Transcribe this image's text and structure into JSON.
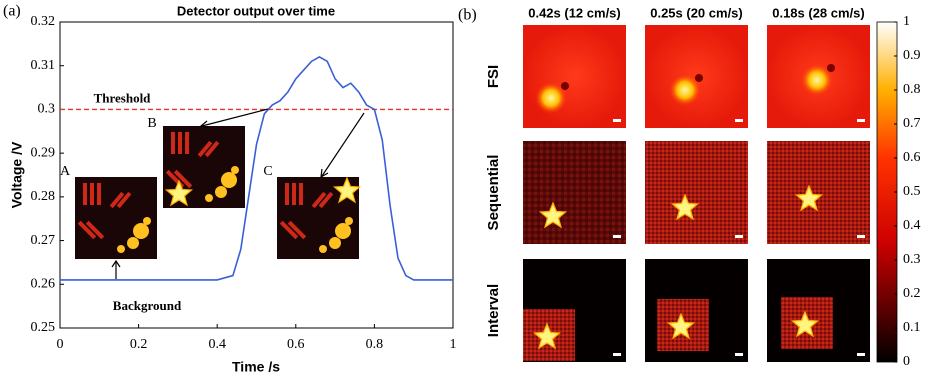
{
  "chart_data": {
    "type": "line",
    "panel_label": "(a)",
    "title": "Detector output over time",
    "xlabel": "Time /s",
    "ylabel": "Voltage /V",
    "x": [
      0,
      0.05,
      0.1,
      0.15,
      0.2,
      0.25,
      0.3,
      0.35,
      0.4,
      0.44,
      0.46,
      0.48,
      0.5,
      0.52,
      0.54,
      0.56,
      0.58,
      0.6,
      0.62,
      0.64,
      0.66,
      0.68,
      0.7,
      0.72,
      0.74,
      0.76,
      0.78,
      0.8,
      0.82,
      0.84,
      0.86,
      0.88,
      0.9,
      0.95,
      1
    ],
    "series": [
      {
        "color": "#3a5fd9",
        "values": [
          0.261,
          0.261,
          0.261,
          0.261,
          0.261,
          0.261,
          0.261,
          0.261,
          0.261,
          0.262,
          0.268,
          0.28,
          0.292,
          0.299,
          0.301,
          0.302,
          0.304,
          0.307,
          0.309,
          0.311,
          0.312,
          0.311,
          0.307,
          0.305,
          0.306,
          0.304,
          0.301,
          0.3,
          0.293,
          0.278,
          0.266,
          0.262,
          0.261,
          0.261,
          0.261
        ]
      }
    ],
    "xlim": [
      0,
      1
    ],
    "xticks": [
      0,
      0.2,
      0.4,
      0.6,
      0.8,
      1
    ],
    "ylim": [
      0.25,
      0.32
    ],
    "yticks": [
      0.25,
      0.26,
      0.27,
      0.28,
      0.29,
      0.3,
      0.31,
      0.32
    ],
    "threshold": {
      "value": 0.3,
      "label": "Threshold",
      "color": "#e8342a"
    },
    "annotations": {
      "background": "Background",
      "insets": [
        "A",
        "B",
        "C"
      ]
    }
  },
  "panel_b": {
    "panel_label": "(b)",
    "columns": [
      "0.42s (12 cm/s)",
      "0.25s (20 cm/s)",
      "0.18s (28 cm/s)"
    ],
    "rows": [
      "FSI",
      "Sequential",
      "Interval"
    ],
    "colorbar": {
      "lim": [
        0,
        1
      ],
      "ticks": [
        0,
        0.1,
        0.2,
        0.3,
        0.4,
        0.5,
        0.6,
        0.7,
        0.8,
        0.9,
        1
      ]
    }
  }
}
